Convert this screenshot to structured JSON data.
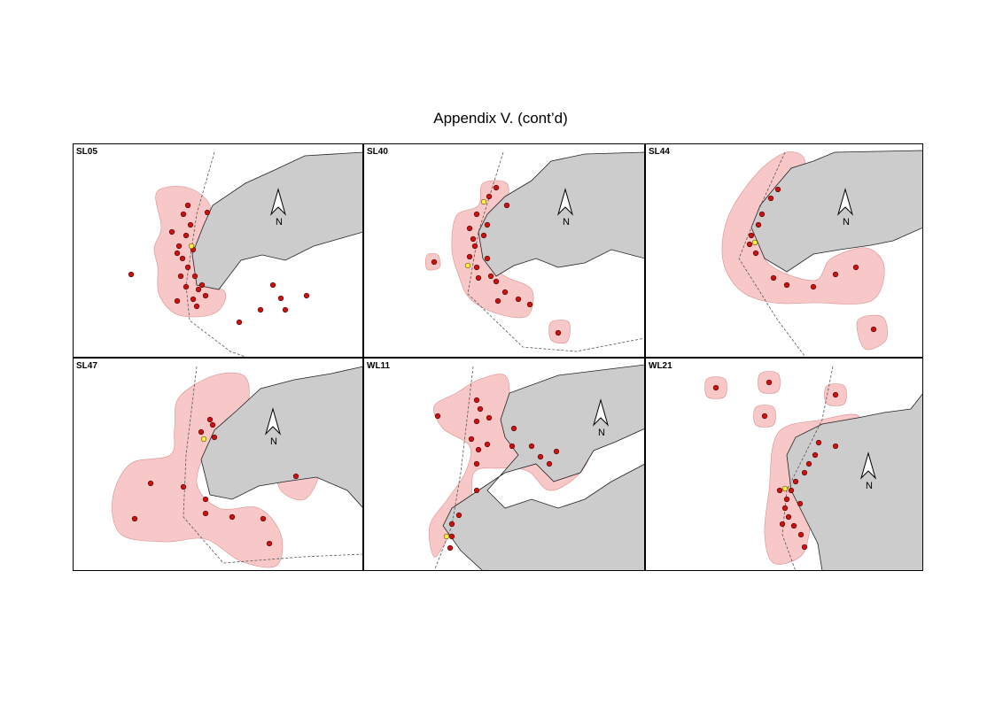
{
  "title": "Appendix V.  (cont’d)",
  "panels": [
    {
      "label": "SL05",
      "north": "N"
    },
    {
      "label": "SL40",
      "north": "N"
    },
    {
      "label": "SL44",
      "north": "N"
    },
    {
      "label": "SL47",
      "north": "N"
    },
    {
      "label": "WL11",
      "north": "N"
    },
    {
      "label": "WL21",
      "north": "N"
    }
  ]
}
